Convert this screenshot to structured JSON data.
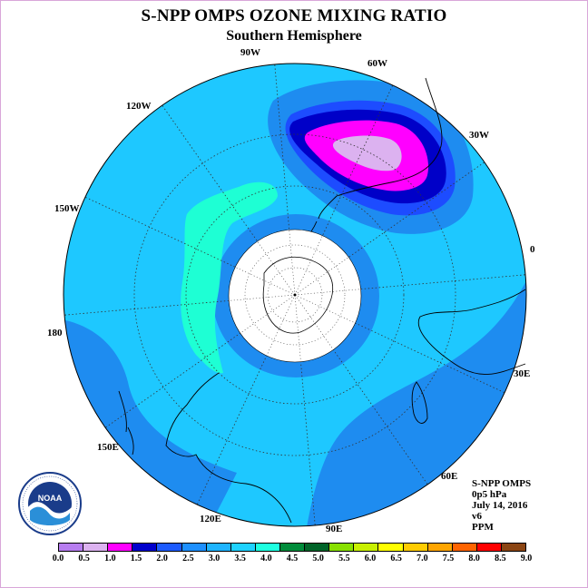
{
  "title": "S-NPP OMPS OZONE MIXING RATIO",
  "subtitle": "Southern Hemisphere",
  "map": {
    "projection": "south polar stereographic",
    "longitude_labels": [
      "90W",
      "60W",
      "30W",
      "0",
      "30E",
      "60E",
      "90E",
      "120E",
      "150E",
      "180",
      "150W",
      "120W"
    ],
    "polar_region": "no data (white)"
  },
  "info": {
    "instrument": "S-NPP OMPS",
    "level": "0p5 hPa",
    "date": "July 14, 2016",
    "version": "v6",
    "units": "PPM"
  },
  "logo_icon": "noaa-logo-icon",
  "colorbar": {
    "colors": [
      "#b77df0",
      "#dcb2f0",
      "#ff00ff",
      "#0000cc",
      "#1d5bff",
      "#1e90ff",
      "#1eb4ff",
      "#1ed2ff",
      "#1effe0",
      "#008c3a",
      "#006428",
      "#88e000",
      "#c8f000",
      "#ffff00",
      "#ffcc00",
      "#ffa500",
      "#ff6400",
      "#ff0000",
      "#8b4513"
    ],
    "tick_labels": [
      "0.0",
      "0.5",
      "1.0",
      "1.5",
      "2.0",
      "2.5",
      "3.0",
      "3.5",
      "4.0",
      "4.5",
      "5.0",
      "5.5",
      "6.0",
      "6.5",
      "7.0",
      "7.5",
      "8.0",
      "8.5",
      "9.0"
    ]
  }
}
